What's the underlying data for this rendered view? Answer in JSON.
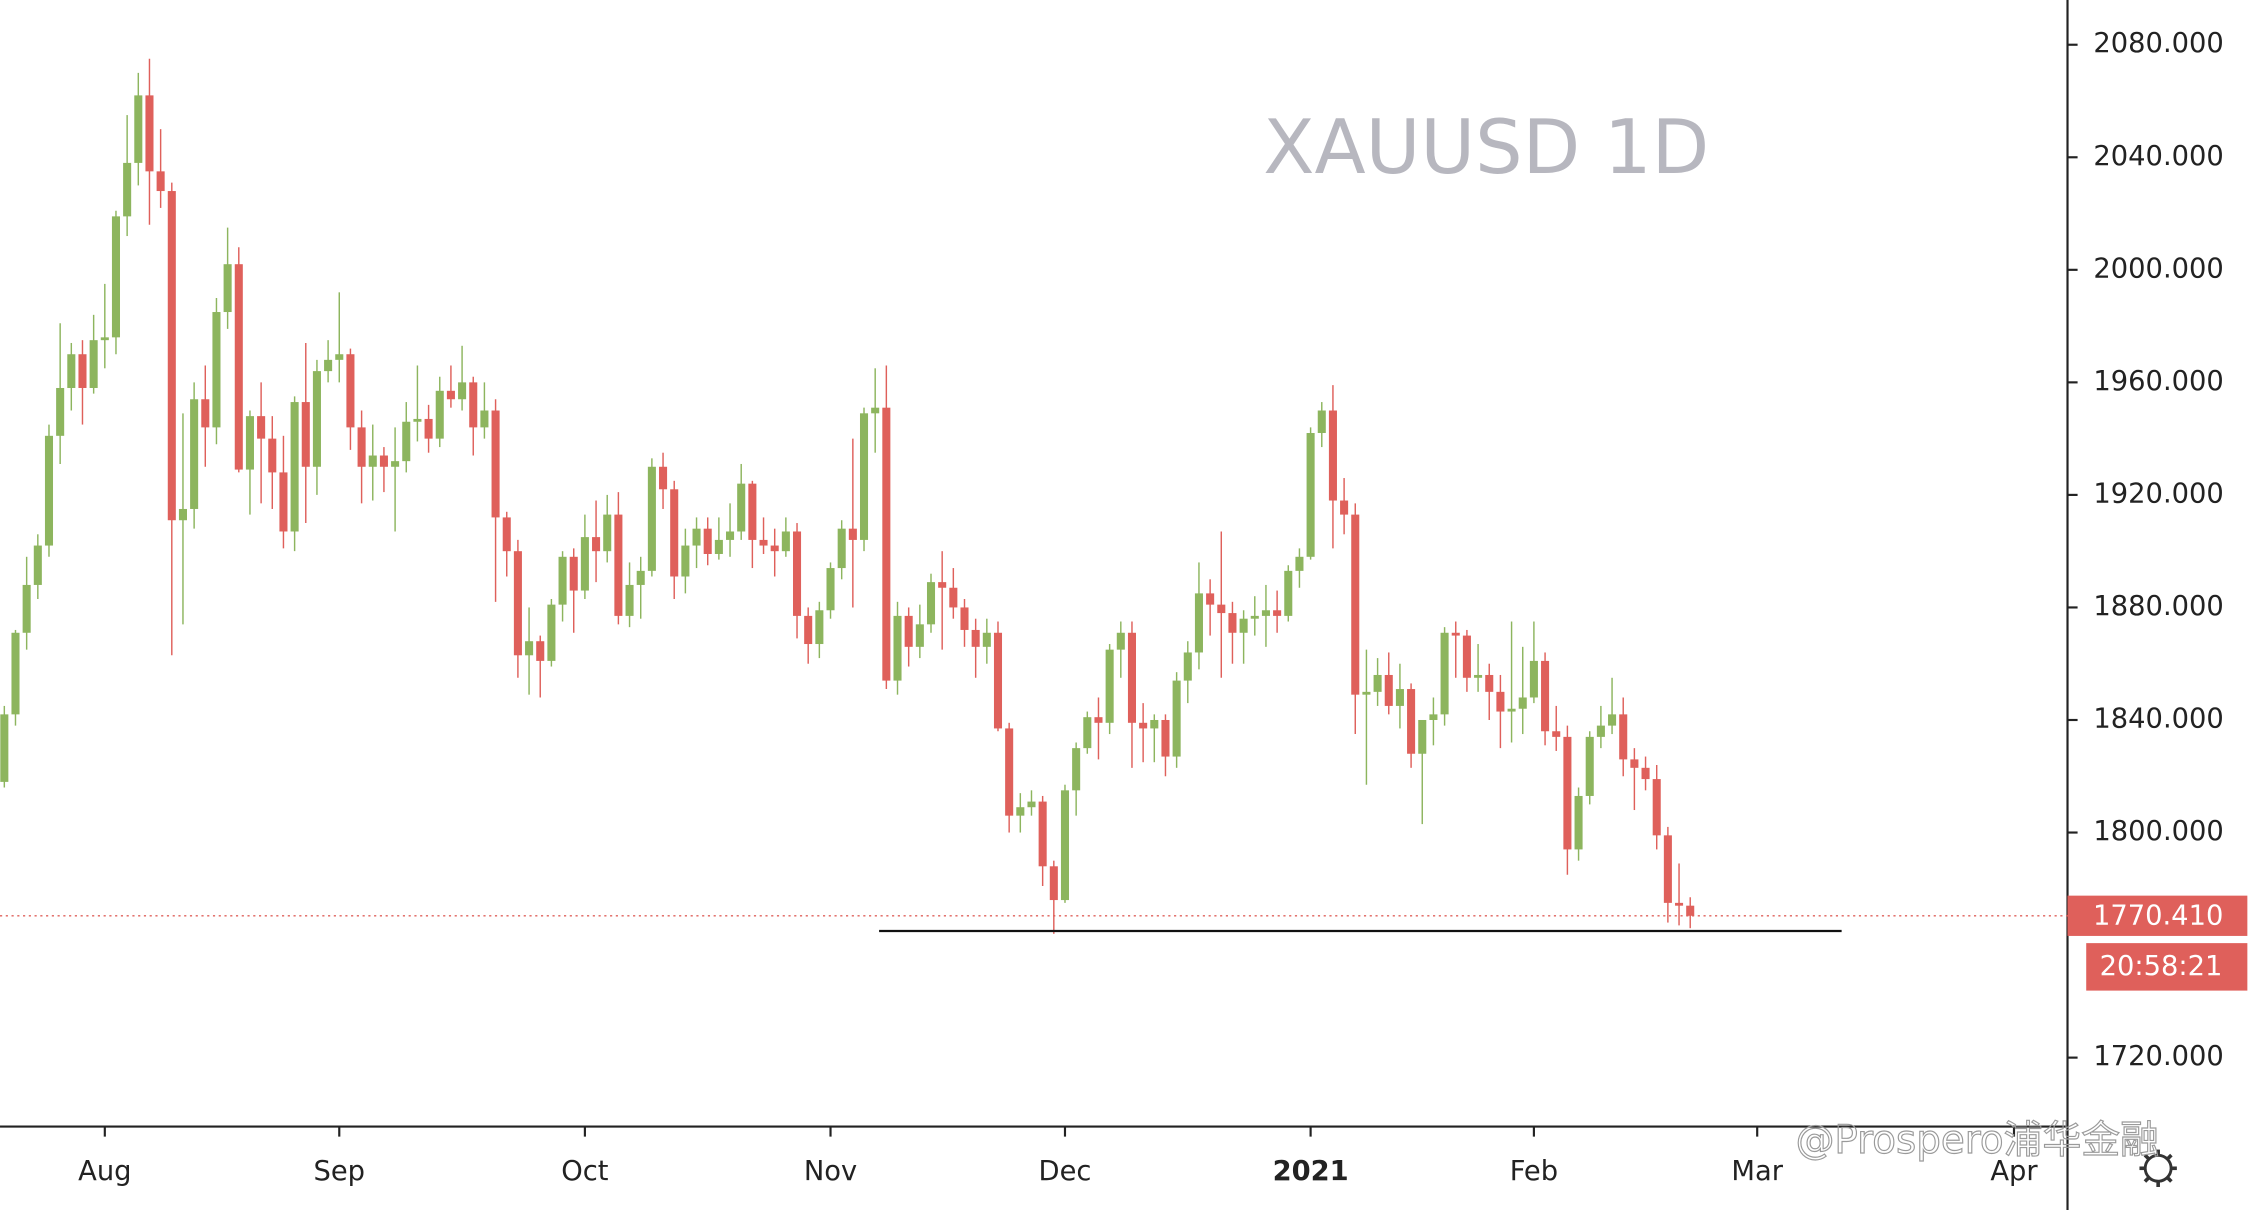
{
  "chart_data": {
    "type": "candlestick",
    "title": "XAUUSD 1D",
    "categories": [
      null,
      null,
      null,
      null,
      null,
      null,
      null,
      null,
      null,
      "Aug",
      null,
      null,
      null,
      null,
      null,
      null,
      null,
      null,
      null,
      null,
      null,
      null,
      null,
      null,
      null,
      null,
      null,
      null,
      null,
      null,
      "Sep",
      null,
      null,
      null,
      null,
      null,
      null,
      null,
      null,
      null,
      null,
      null,
      null,
      null,
      null,
      null,
      null,
      null,
      null,
      null,
      null,
      null,
      "Oct",
      null,
      null,
      null,
      null,
      null,
      null,
      null,
      null,
      null,
      null,
      null,
      null,
      null,
      null,
      null,
      null,
      null,
      null,
      null,
      null,
      null,
      "Nov",
      null,
      null,
      null,
      null,
      null,
      null,
      null,
      null,
      null,
      null,
      null,
      null,
      null,
      null,
      null,
      null,
      null,
      null,
      null,
      null,
      "Dec",
      null,
      null,
      null,
      null,
      null,
      null,
      null,
      null,
      null,
      null,
      null,
      null,
      null,
      null,
      null,
      null,
      null,
      null,
      null,
      null,
      null,
      "2021",
      null,
      null,
      null,
      null,
      null,
      null,
      null,
      null,
      null,
      null,
      null,
      null,
      null,
      null,
      null,
      null,
      null,
      null,
      null,
      "Feb",
      null,
      null,
      null,
      null,
      null,
      null,
      null,
      null,
      null,
      null,
      null,
      null,
      null,
      null,
      null,
      null,
      null,
      null,
      null,
      "Mar",
      null,
      null,
      null,
      null,
      null,
      null,
      null,
      null,
      null,
      null,
      null,
      null,
      null,
      null,
      null,
      null,
      null,
      null,
      null,
      null,
      null,
      null,
      "Apr",
      null,
      null,
      null
    ],
    "open": [
      1818,
      1842,
      1871,
      1888,
      1902,
      1941,
      1958,
      1970,
      1958,
      1975,
      1976,
      2019,
      2038,
      2062,
      2035,
      2028,
      1911,
      1915,
      1954,
      1944,
      1985,
      2002,
      1929,
      1948,
      1940,
      1928,
      1907,
      1953,
      1930,
      1964,
      1968,
      1970,
      1944,
      1930,
      1934,
      1930,
      1932,
      1946,
      1947,
      1940,
      1957,
      1954,
      1960,
      1944,
      1950,
      1912,
      1900,
      1863,
      1868,
      1861,
      1881,
      1898,
      1886,
      1905,
      1900,
      1913,
      1877,
      1888,
      1893,
      1930,
      1922,
      1891,
      1902,
      1908,
      1899,
      1904,
      1907,
      1924,
      1904,
      1902,
      1900,
      1907,
      1877,
      1867,
      1879,
      1894,
      1908,
      1904,
      1949,
      1951,
      1854,
      1877,
      1866,
      1874,
      1889,
      1887,
      1880,
      1872,
      1866,
      1871,
      1837,
      1806,
      1809,
      1811,
      1788,
      1776,
      1815,
      1830,
      1841,
      1839,
      1865,
      1871,
      1839,
      1837,
      1840,
      1827,
      1854,
      1864,
      1885,
      1881,
      1878,
      1871,
      1876,
      1877,
      1879,
      1877,
      1893,
      1898,
      1942,
      1950,
      1918,
      1913,
      1849,
      1850,
      1856,
      1845,
      1851,
      1828,
      1840,
      1842,
      1871,
      1870,
      1855,
      1856,
      1850,
      1843,
      1844,
      1848,
      1861,
      1836,
      1834,
      1794,
      1813,
      1834,
      1838,
      1842,
      1826,
      1823,
      1819,
      1799,
      1775,
      1774,
      null,
      null,
      null,
      null,
      null,
      null,
      null,
      null,
      null,
      null,
      null,
      null,
      null,
      null,
      null,
      null,
      null,
      null,
      null,
      null,
      null,
      null,
      null,
      null,
      null,
      null,
      null,
      null,
      null,
      null,
      null,
      null
    ],
    "high": [
      1845,
      1872,
      1898,
      1906,
      1945,
      1981,
      1974,
      1975,
      1984,
      1995,
      2021,
      2055,
      2070,
      2075,
      2050,
      2031,
      1949,
      1960,
      1966,
      1990,
      2015,
      2008,
      1950,
      1960,
      1948,
      1941,
      1955,
      1974,
      1968,
      1975,
      1992,
      1972,
      1950,
      1945,
      1937,
      1944,
      1953,
      1966,
      1952,
      1962,
      1966,
      1973,
      1962,
      1960,
      1954,
      1914,
      1904,
      1880,
      1870,
      1883,
      1900,
      1901,
      1913,
      1918,
      1920,
      1921,
      1896,
      1898,
      1933,
      1935,
      1925,
      1908,
      1912,
      1912,
      1912,
      1917,
      1931,
      1925,
      1912,
      1908,
      1912,
      1910,
      1880,
      1882,
      1896,
      1911,
      1940,
      1951,
      1965,
      1966,
      1882,
      1880,
      1881,
      1892,
      1900,
      1894,
      1883,
      1876,
      1876,
      1875,
      1839,
      1814,
      1815,
      1813,
      1790,
      1817,
      1832,
      1843,
      1848,
      1867,
      1875,
      1875,
      1846,
      1842,
      1842,
      1857,
      1868,
      1896,
      1890,
      1907,
      1882,
      1879,
      1884,
      1888,
      1886,
      1895,
      1901,
      1944,
      1953,
      1959,
      1926,
      1917,
      1865,
      1862,
      1864,
      1860,
      1853,
      1840,
      1848,
      1873,
      1875,
      1872,
      1867,
      1860,
      1856,
      1875,
      1866,
      1875,
      1864,
      1845,
      1838,
      1816,
      1836,
      1845,
      1855,
      1848,
      1830,
      1827,
      1824,
      1802,
      1789,
      1777,
      null,
      null,
      null,
      null,
      null,
      null,
      null,
      null,
      null,
      null,
      null,
      null,
      null,
      null,
      null,
      null,
      null,
      null,
      null,
      null,
      null,
      null,
      null,
      null,
      null,
      null,
      null,
      null,
      null,
      null,
      null,
      null
    ],
    "low": [
      1816,
      1838,
      1865,
      1883,
      1898,
      1931,
      1950,
      1945,
      1956,
      1965,
      1970,
      2012,
      2030,
      2016,
      2022,
      1863,
      1874,
      1908,
      1930,
      1938,
      1979,
      1928,
      1913,
      1917,
      1915,
      1901,
      1900,
      1910,
      1920,
      1960,
      1960,
      1936,
      1917,
      1918,
      1921,
      1907,
      1928,
      1939,
      1935,
      1937,
      1951,
      1950,
      1934,
      1940,
      1882,
      1891,
      1855,
      1849,
      1848,
      1859,
      1875,
      1871,
      1883,
      1889,
      1896,
      1874,
      1873,
      1876,
      1891,
      1915,
      1883,
      1885,
      1894,
      1895,
      1897,
      1898,
      1904,
      1894,
      1899,
      1891,
      1898,
      1869,
      1860,
      1862,
      1876,
      1890,
      1880,
      1900,
      1935,
      1851,
      1849,
      1859,
      1862,
      1871,
      1865,
      1876,
      1866,
      1855,
      1860,
      1836,
      1800,
      1800,
      1806,
      1781,
      1764,
      1775,
      1806,
      1828,
      1826,
      1835,
      1855,
      1823,
      1825,
      1825,
      1820,
      1823,
      1846,
      1858,
      1870,
      1855,
      1860,
      1860,
      1870,
      1866,
      1871,
      1875,
      1887,
      1897,
      1937,
      1901,
      1906,
      1835,
      1817,
      1845,
      1842,
      1837,
      1823,
      1803,
      1831,
      1838,
      1855,
      1850,
      1850,
      1840,
      1830,
      1832,
      1835,
      1846,
      1831,
      1829,
      1785,
      1790,
      1810,
      1830,
      1835,
      1820,
      1808,
      1815,
      1794,
      1768,
      1767,
      1766,
      null,
      null,
      null,
      null,
      null,
      null,
      null,
      null,
      null,
      null,
      null,
      null,
      null,
      null,
      null,
      null,
      null,
      null,
      null,
      null,
      null,
      null,
      null,
      null,
      null,
      null,
      null,
      null,
      null,
      null,
      null,
      null
    ],
    "close": [
      1842,
      1871,
      1888,
      1902,
      1941,
      1958,
      1970,
      1958,
      1975,
      1976,
      2019,
      2038,
      2062,
      2035,
      2028,
      1911,
      1915,
      1954,
      1944,
      1985,
      2002,
      1929,
      1948,
      1940,
      1928,
      1907,
      1953,
      1930,
      1964,
      1968,
      1970,
      1944,
      1930,
      1934,
      1930,
      1932,
      1946,
      1947,
      1940,
      1957,
      1954,
      1960,
      1944,
      1950,
      1912,
      1900,
      1863,
      1868,
      1861,
      1881,
      1898,
      1886,
      1905,
      1900,
      1913,
      1877,
      1888,
      1893,
      1930,
      1922,
      1891,
      1902,
      1908,
      1899,
      1904,
      1907,
      1924,
      1904,
      1902,
      1900,
      1907,
      1877,
      1867,
      1879,
      1894,
      1908,
      1904,
      1949,
      1951,
      1854,
      1877,
      1866,
      1874,
      1889,
      1887,
      1880,
      1872,
      1866,
      1871,
      1837,
      1806,
      1809,
      1811,
      1788,
      1776,
      1815,
      1830,
      1841,
      1839,
      1865,
      1871,
      1839,
      1837,
      1840,
      1827,
      1854,
      1864,
      1885,
      1881,
      1878,
      1871,
      1876,
      1877,
      1879,
      1877,
      1893,
      1898,
      1942,
      1950,
      1918,
      1913,
      1849,
      1850,
      1856,
      1845,
      1851,
      1828,
      1840,
      1842,
      1871,
      1870,
      1855,
      1856,
      1850,
      1843,
      1844,
      1848,
      1861,
      1836,
      1834,
      1794,
      1813,
      1834,
      1838,
      1842,
      1826,
      1823,
      1819,
      1799,
      1775,
      1774,
      1770.41,
      null,
      null,
      null,
      null,
      null,
      null,
      null,
      null,
      null,
      null,
      null,
      null,
      null,
      null,
      null,
      null,
      null,
      null,
      null,
      null,
      null,
      null,
      null,
      null,
      null,
      null,
      null,
      null,
      null,
      null,
      null,
      null
    ],
    "up_color": "#8db55e",
    "down_color": "#df605b",
    "ylim": [
      1695.5,
      2095.9
    ],
    "yticks": [
      {
        "value": 1720,
        "label": "1720.000"
      },
      {
        "value": 1800,
        "label": "1800.000"
      },
      {
        "value": 1840,
        "label": "1840.000"
      },
      {
        "value": 1880,
        "label": "1880.000"
      },
      {
        "value": 1920,
        "label": "1920.000"
      },
      {
        "value": 1960,
        "label": "1960.000"
      },
      {
        "value": 2000,
        "label": "2000.000"
      },
      {
        "value": 2040,
        "label": "2040.000"
      },
      {
        "value": 2080,
        "label": "2080.000"
      }
    ],
    "last_price_label": "1770.410",
    "countdown": "20:58:21",
    "support_level": 1765,
    "watermark": "@Prospero浦华金融"
  }
}
